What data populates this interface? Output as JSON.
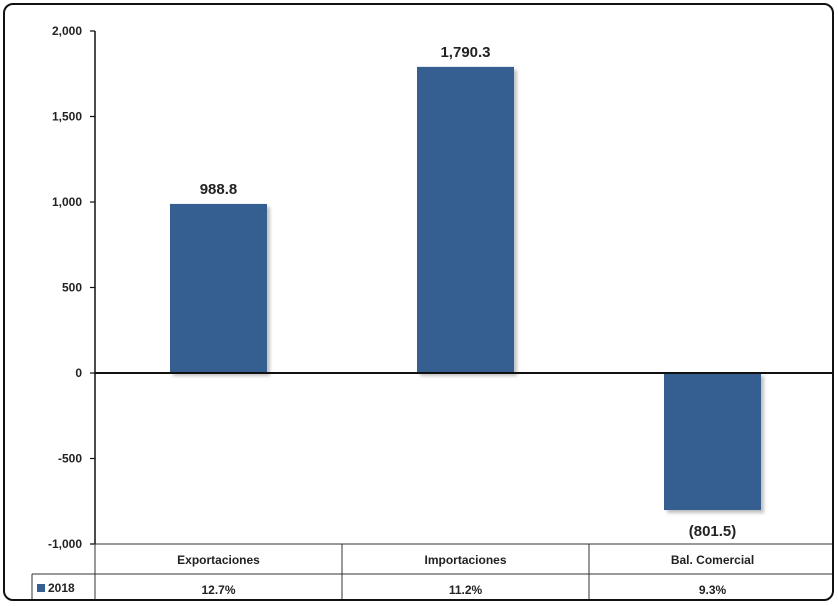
{
  "chart_data": {
    "type": "bar",
    "categories": [
      "Exportaciones",
      "Importaciones",
      "Bal. Comercial"
    ],
    "series": [
      {
        "name": "2018",
        "values": [
          988.8,
          1790.3,
          -801.5
        ],
        "value_labels": [
          "988.8",
          "1,790.3",
          "(801.5)"
        ],
        "color": "#355f91"
      }
    ],
    "ylim": [
      -1000,
      2000
    ],
    "yticks": [
      2000,
      1500,
      1000,
      500,
      0,
      -500,
      -1000
    ],
    "ytick_labels": [
      "2,000",
      "1,500",
      "1,000",
      "500",
      "0",
      "-500",
      "-1,000"
    ],
    "data_table": {
      "row_label": "2018",
      "values": [
        "12.7%",
        "11.2%",
        "9.3%"
      ]
    },
    "grid": false,
    "legend": "in data table"
  }
}
